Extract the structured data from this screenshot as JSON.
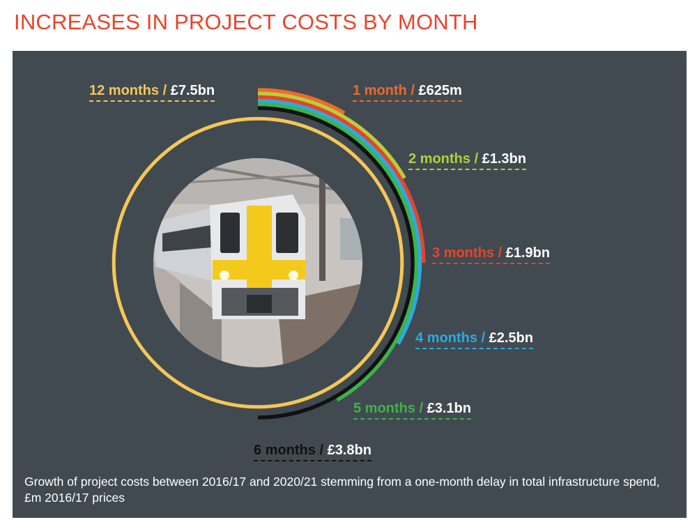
{
  "title": "INCREASES IN PROJECT COSTS BY MONTH",
  "caption": "Growth of project costs between 2016/17 and 2020/21 stemming from a one-month delay in total infrastructure spend, £m 2016/17 prices",
  "colors": {
    "title": "#e8442b",
    "panel": "#414a51",
    "photo_sky": "#c9c4c0",
    "train_yellow": "#f3c91c"
  },
  "chart_data": {
    "type": "radial-bar",
    "unit": "£m 2016/17 prices",
    "full_scale_months": 12,
    "series": [
      {
        "months": 1,
        "period": "1 month",
        "label": "£625m",
        "value_m": 625,
        "color": "#ef6a2a"
      },
      {
        "months": 2,
        "period": "2 months",
        "label": "£1.3bn",
        "value_m": 1300,
        "color": "#b6cf3e"
      },
      {
        "months": 3,
        "period": "3 months",
        "label": "£1.9bn",
        "value_m": 1900,
        "color": "#e8442b"
      },
      {
        "months": 4,
        "period": "4 months",
        "label": "£2.5bn",
        "value_m": 2500,
        "color": "#2ea9df"
      },
      {
        "months": 5,
        "period": "5 months",
        "label": "£3.1bn",
        "value_m": 3100,
        "color": "#3fb24a"
      },
      {
        "months": 6,
        "period": "6 months",
        "label": "£3.8bn",
        "value_m": 3800,
        "color": "#111111"
      },
      {
        "months": 12,
        "period": "12 months",
        "label": "£7.5bn",
        "value_m": 7500,
        "color": "#f5c756"
      }
    ],
    "separator": " / "
  }
}
